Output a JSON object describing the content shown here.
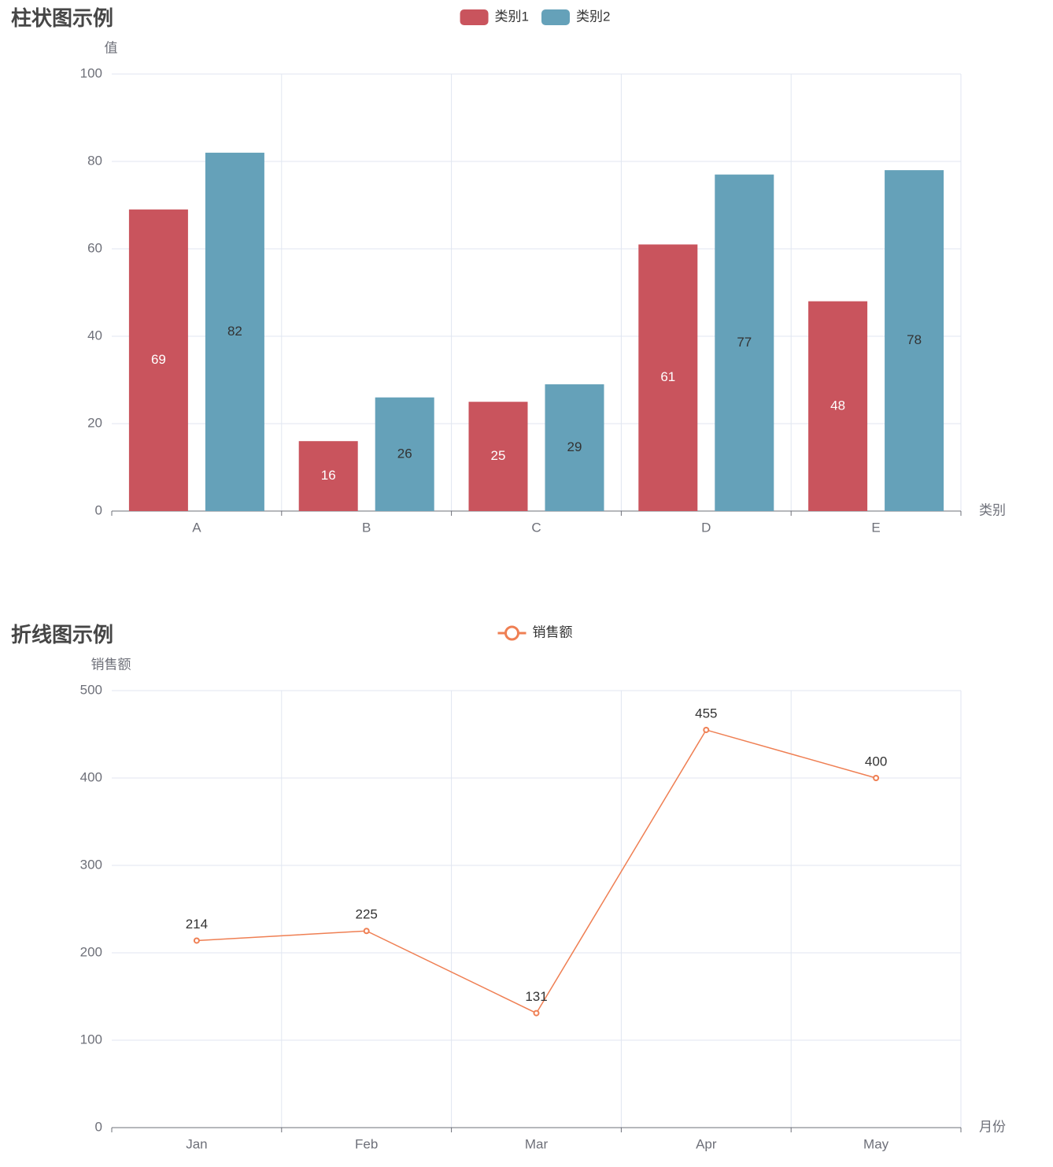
{
  "chart_data": [
    {
      "type": "bar",
      "title": "柱状图示例",
      "y_axis_label": "值",
      "x_axis_label": "类别",
      "categories": [
        "A",
        "B",
        "C",
        "D",
        "E"
      ],
      "series": [
        {
          "name": "类别1",
          "color": "#c9545d",
          "values": [
            69,
            16,
            25,
            61,
            48
          ]
        },
        {
          "name": "类别2",
          "color": "#65a1b9",
          "values": [
            82,
            26,
            29,
            77,
            78
          ]
        }
      ],
      "ylim": [
        0,
        100
      ],
      "yticks": [
        0,
        20,
        40,
        60,
        80,
        100
      ],
      "grid": true,
      "legend": "top"
    },
    {
      "type": "line",
      "title": "折线图示例",
      "y_axis_label": "销售额",
      "x_axis_label": "月份",
      "categories": [
        "Jan",
        "Feb",
        "Mar",
        "Apr",
        "May"
      ],
      "series": [
        {
          "name": "销售额",
          "color": "#ef7f53",
          "values": [
            214,
            225,
            131,
            455,
            400
          ]
        }
      ],
      "ylim": [
        0,
        500
      ],
      "yticks": [
        0,
        100,
        200,
        300,
        400,
        500
      ],
      "grid": true,
      "legend": "top"
    }
  ]
}
